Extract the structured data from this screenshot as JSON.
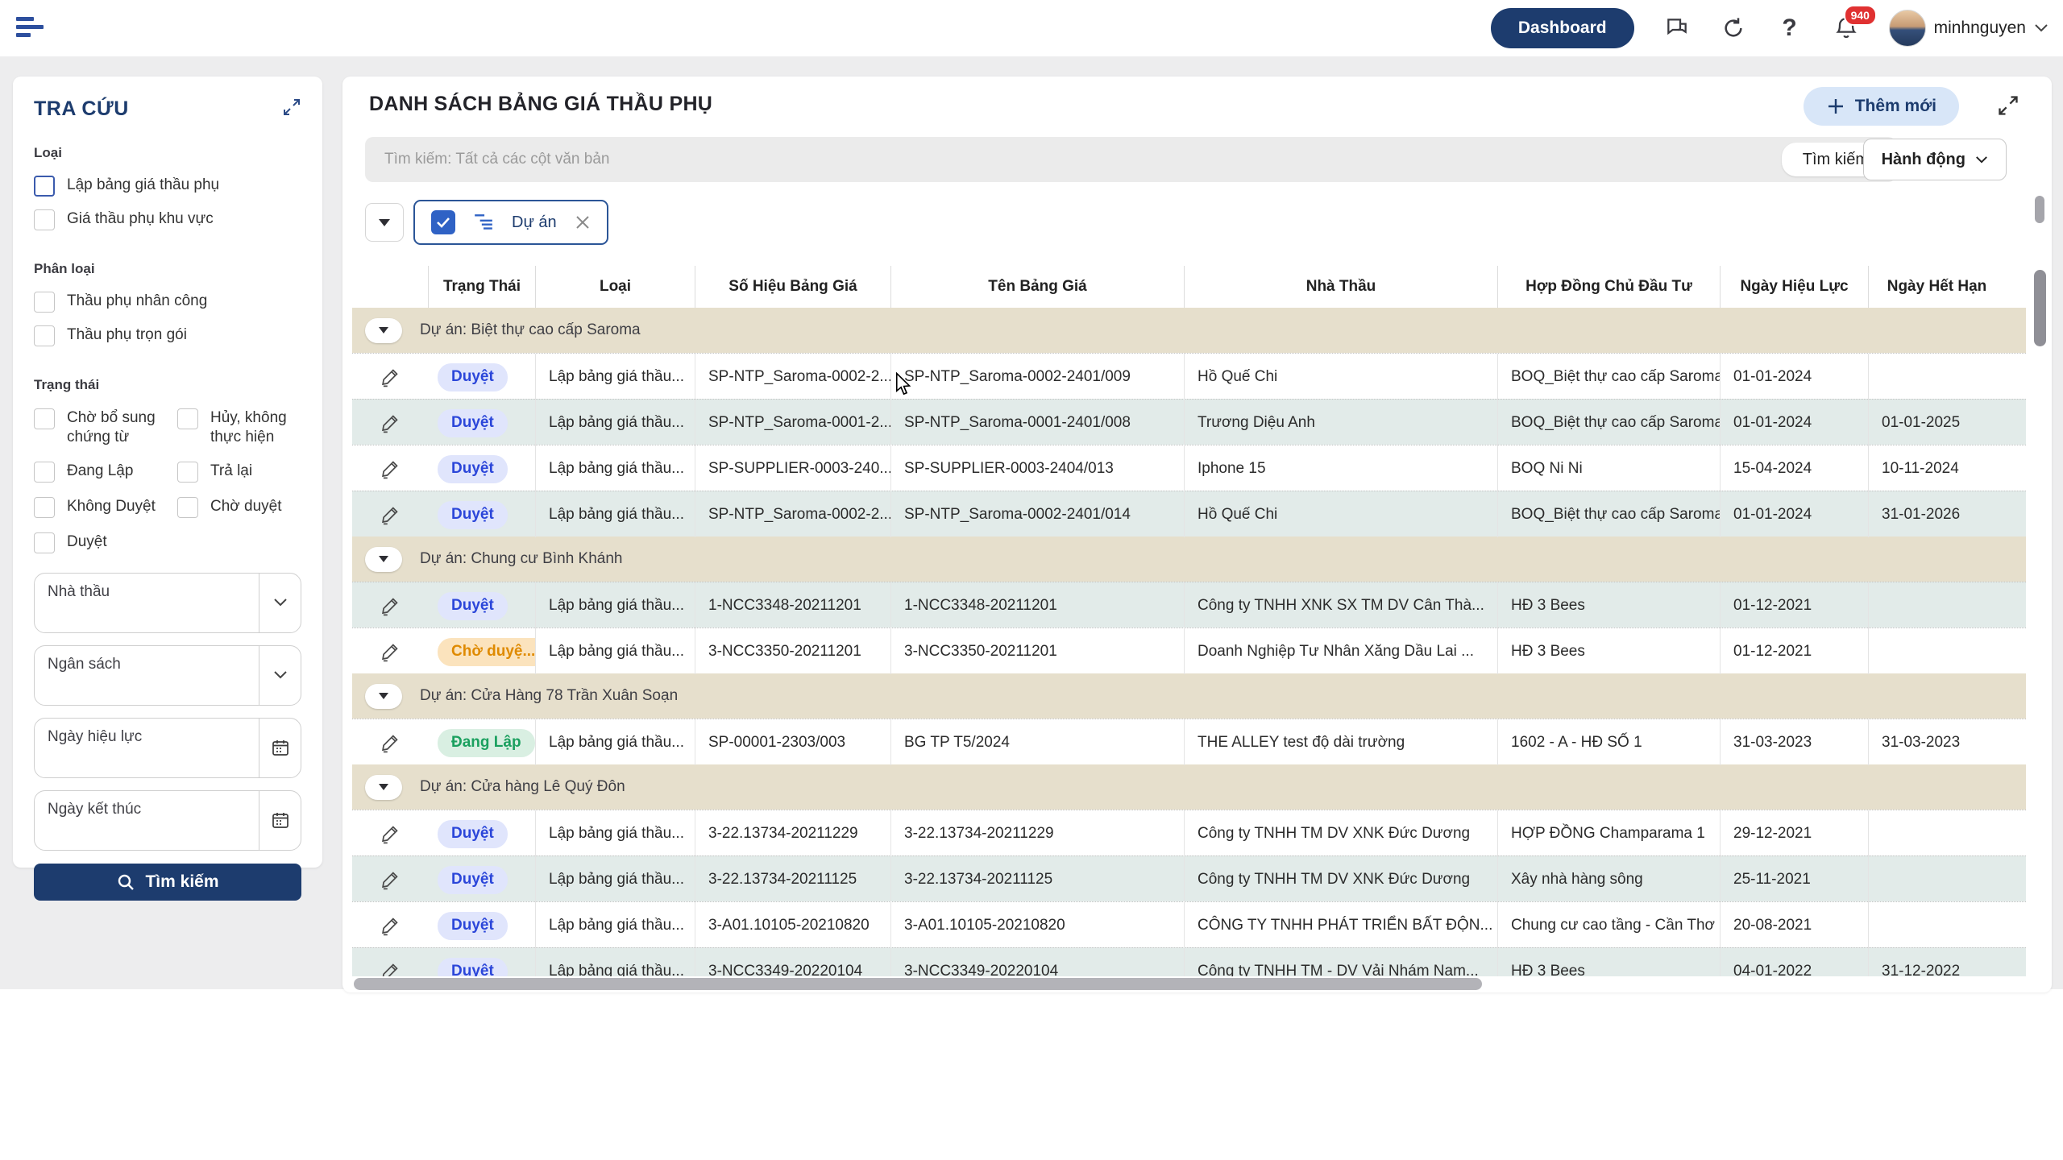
{
  "topbar": {
    "dashboard_label": "Dashboard",
    "notification_count": "940",
    "username": "minhnguyen"
  },
  "sidebar": {
    "title": "TRA CỨU",
    "sections": {
      "loai": {
        "label": "Loại",
        "options": [
          "Lập bảng giá thầu phụ",
          "Giá thầu phụ khu vực"
        ]
      },
      "phan_loai": {
        "label": "Phân loại",
        "options": [
          "Thầu phụ nhân công",
          "Thầu phụ trọn gói"
        ]
      },
      "trang_thai": {
        "label": "Trạng thái",
        "options": [
          "Chờ bổ sung chứng từ",
          "Hủy, không thực hiện",
          "Đang Lập",
          "Trả lại",
          "Không Duyệt",
          "Chờ duyệt",
          "Duyệt"
        ]
      }
    },
    "fields": {
      "nha_thau": "Nhà thầu",
      "ngan_sach": "Ngân sách",
      "ngay_hieu_luc": "Ngày hiệu lực",
      "ngay_ket_thuc": "Ngày kết thúc"
    },
    "search_button": "Tìm kiếm"
  },
  "main": {
    "title": "DANH SÁCH BẢNG GIÁ THẦU PHỤ",
    "add_button": "Thêm mới",
    "search_placeholder": "Tìm kiếm: Tất cả các cột văn bản",
    "search_button": "Tìm kiếm",
    "actions_button": "Hành động",
    "group_chip": "Dự án",
    "table": {
      "columns": [
        "Trạng Thái",
        "Loại",
        "Số Hiệu Bảng Giá",
        "Tên Bảng Giá",
        "Nhà Thầu",
        "Hợp Đồng Chủ Đầu Tư",
        "Ngày Hiệu Lực",
        "Ngày Hết Hạn"
      ],
      "status_colors": {
        "approved": "#2b46d9",
        "pending": "#df8a00",
        "draft": "#1ba05f"
      },
      "groups": [
        {
          "title": "Dự án: Biệt thự cao cấp Saroma",
          "rows": [
            {
              "status": "Duyệt",
              "status_type": "approved",
              "loai": "Lập bảng giá thầu...",
              "so_hieu": "SP-NTP_Saroma-0002-2...",
              "ten": "SP-NTP_Saroma-0002-2401/009",
              "nha_thau": "Hồ Quế Chi",
              "hop_dong": "BOQ_Biệt thự cao cấp Saroma",
              "hieu_luc": "01-01-2024",
              "het_han": "",
              "tint": false
            },
            {
              "status": "Duyệt",
              "status_type": "approved",
              "loai": "Lập bảng giá thầu...",
              "so_hieu": "SP-NTP_Saroma-0001-2...",
              "ten": "SP-NTP_Saroma-0001-2401/008",
              "nha_thau": "Trương Diệu Anh",
              "hop_dong": "BOQ_Biệt thự cao cấp Saroma",
              "hieu_luc": "01-01-2024",
              "het_han": "01-01-2025",
              "tint": true
            },
            {
              "status": "Duyệt",
              "status_type": "approved",
              "loai": "Lập bảng giá thầu...",
              "so_hieu": "SP-SUPPLIER-0003-240...",
              "ten": "SP-SUPPLIER-0003-2404/013",
              "nha_thau": "Iphone 15",
              "hop_dong": "BOQ Ni Ni",
              "hieu_luc": "15-04-2024",
              "het_han": "10-11-2024",
              "tint": false
            },
            {
              "status": "Duyệt",
              "status_type": "approved",
              "loai": "Lập bảng giá thầu...",
              "so_hieu": "SP-NTP_Saroma-0002-2...",
              "ten": "SP-NTP_Saroma-0002-2401/014",
              "nha_thau": "Hồ Quế Chi",
              "hop_dong": "BOQ_Biệt thự cao cấp Saroma",
              "hieu_luc": "01-01-2024",
              "het_han": "31-01-2026",
              "tint": true
            }
          ]
        },
        {
          "title": "Dự án: Chung cư Bình Khánh",
          "rows": [
            {
              "status": "Duyệt",
              "status_type": "approved",
              "loai": "Lập bảng giá thầu...",
              "so_hieu": "1-NCC3348-20211201",
              "ten": "1-NCC3348-20211201",
              "nha_thau": "Công ty TNHH XNK SX TM DV Cân Thà...",
              "hop_dong": "HĐ 3 Bees",
              "hieu_luc": "01-12-2021",
              "het_han": "",
              "tint": true
            },
            {
              "status": "Chờ duyệ...",
              "status_type": "pending",
              "loai": "Lập bảng giá thầu...",
              "so_hieu": "3-NCC3350-20211201",
              "ten": "3-NCC3350-20211201",
              "nha_thau": "Doanh Nghiệp Tư Nhân Xăng Dầu Lai ...",
              "hop_dong": "HĐ 3 Bees",
              "hieu_luc": "01-12-2021",
              "het_han": "",
              "tint": false
            }
          ]
        },
        {
          "title": "Dự án: Cửa Hàng 78 Trần Xuân Soạn",
          "rows": [
            {
              "status": "Đang Lập",
              "status_type": "draft",
              "loai": "Lập bảng giá thầu...",
              "so_hieu": "SP-00001-2303/003",
              "ten": "BG TP T5/2024",
              "nha_thau": "THE ALLEY test độ dài trường",
              "hop_dong": "1602 - A - HĐ SỐ 1",
              "hieu_luc": "31-03-2023",
              "het_han": "31-03-2023",
              "tint": false
            }
          ]
        },
        {
          "title": "Dự án: Cửa hàng Lê Quý Đôn",
          "rows": [
            {
              "status": "Duyệt",
              "status_type": "approved",
              "loai": "Lập bảng giá thầu...",
              "so_hieu": "3-22.13734-20211229",
              "ten": "3-22.13734-20211229",
              "nha_thau": "Công ty TNHH TM DV XNK Đức Dương",
              "hop_dong": "HỢP ĐỒNG Champarama 1",
              "hieu_luc": "29-12-2021",
              "het_han": "",
              "tint": false
            },
            {
              "status": "Duyệt",
              "status_type": "approved",
              "loai": "Lập bảng giá thầu...",
              "so_hieu": "3-22.13734-20211125",
              "ten": "3-22.13734-20211125",
              "nha_thau": "Công ty TNHH TM DV XNK Đức Dương",
              "hop_dong": "Xây nhà hàng sông",
              "hieu_luc": "25-11-2021",
              "het_han": "",
              "tint": true
            },
            {
              "status": "Duyệt",
              "status_type": "approved",
              "loai": "Lập bảng giá thầu...",
              "so_hieu": "3-A01.10105-20210820",
              "ten": "3-A01.10105-20210820",
              "nha_thau": "CÔNG TY TNHH PHÁT TRIỂN BẤT ĐỘN...",
              "hop_dong": "Chung cư cao tầng - Cần Thơ",
              "hieu_luc": "20-08-2021",
              "het_han": "",
              "tint": false
            },
            {
              "status": "Duyệt",
              "status_type": "approved",
              "loai": "Lập bảng giá thầu...",
              "so_hieu": "3-NCC3349-20220104",
              "ten": "3-NCC3349-20220104",
              "nha_thau": "Công ty TNHH TM - DV Vải Nhám Nam...",
              "hop_dong": "HĐ 3 Bees",
              "hieu_luc": "04-01-2022",
              "het_han": "31-12-2022",
              "tint": true
            }
          ]
        }
      ]
    }
  }
}
